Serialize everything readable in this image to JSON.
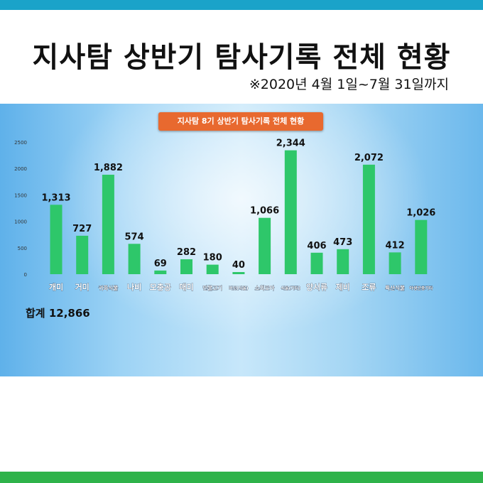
{
  "header": {
    "title": "지사탐 상반기 탐사기록 전체 현황",
    "date_range": "※2020년 4월 1일~7월 31일까지"
  },
  "panel_title": "지사탐 8기 상반기 탐사기록 전체 현황",
  "total_label": "합계 12,866",
  "colors": {
    "bar": "#2ec76a",
    "title_bg": "#e8692f",
    "top_bar": "#1aa3c9",
    "bottom_bar": "#2fb34a"
  },
  "chart_data": {
    "type": "bar",
    "title": "지사탐 8기 상반기 탐사기록 전체 현황",
    "categories": [
      "개미",
      "거미",
      "귀화식물",
      "나비",
      "모충공",
      "매미",
      "민물고기",
      "버섯(식물)",
      "소외모아",
      "식물(기타)",
      "양서류",
      "제비",
      "조류",
      "특산식물",
      "야생곤충기타"
    ],
    "values": [
      1313,
      727,
      1882,
      574,
      69,
      282,
      180,
      40,
      1066,
      2344,
      406,
      473,
      2072,
      412,
      1026
    ],
    "value_labels": [
      "1,313",
      "727",
      "1,882",
      "574",
      "69",
      "282",
      "180",
      "40",
      "1,066",
      "2,344",
      "406",
      "473",
      "2,072",
      "412",
      "1,026"
    ],
    "yticks": [
      0,
      500,
      1000,
      1500,
      2000,
      2500
    ],
    "ylim": [
      0,
      2500
    ],
    "grid": false,
    "legend": "none"
  }
}
